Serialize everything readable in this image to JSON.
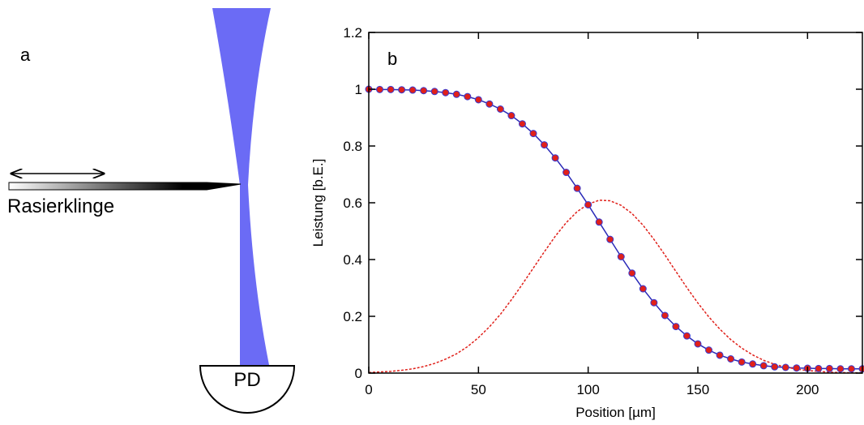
{
  "panel_a": {
    "label": "a",
    "blade_label": "Rasierklinge",
    "detector_label": "PD"
  },
  "chart_data": {
    "type": "line",
    "panel_label": "b",
    "x_label": "Position [µm]",
    "y_label": "Leistung [b.E.]",
    "x": [
      0,
      5,
      10,
      15,
      20,
      25,
      30,
      35,
      40,
      45,
      50,
      55,
      60,
      65,
      70,
      75,
      80,
      85,
      90,
      95,
      100,
      105,
      110,
      115,
      120,
      125,
      130,
      135,
      140,
      145,
      150,
      155,
      160,
      165,
      170,
      175,
      180,
      185,
      190,
      195,
      200,
      205,
      210,
      215,
      220,
      225
    ],
    "series": [
      {
        "style": "markers",
        "color": "#e0201a",
        "edge_color": "#3a3ad0",
        "values": [
          1.0,
          0.999,
          0.999,
          0.998,
          0.997,
          0.995,
          0.992,
          0.988,
          0.982,
          0.974,
          0.963,
          0.948,
          0.93,
          0.907,
          0.878,
          0.844,
          0.804,
          0.758,
          0.707,
          0.651,
          0.593,
          0.532,
          0.471,
          0.41,
          0.352,
          0.297,
          0.248,
          0.203,
          0.164,
          0.131,
          0.103,
          0.081,
          0.063,
          0.05,
          0.039,
          0.032,
          0.026,
          0.022,
          0.02,
          0.018,
          0.017,
          0.016,
          0.016,
          0.015,
          0.015,
          0.015
        ]
      },
      {
        "style": "solid",
        "color": "#2a2ab8",
        "values": [
          1.0,
          0.999,
          0.999,
          0.998,
          0.997,
          0.995,
          0.992,
          0.988,
          0.982,
          0.974,
          0.963,
          0.948,
          0.93,
          0.907,
          0.878,
          0.844,
          0.804,
          0.758,
          0.707,
          0.651,
          0.593,
          0.532,
          0.471,
          0.41,
          0.352,
          0.297,
          0.248,
          0.203,
          0.164,
          0.131,
          0.103,
          0.081,
          0.063,
          0.05,
          0.039,
          0.032,
          0.026,
          0.022,
          0.02,
          0.018,
          0.017,
          0.016,
          0.016,
          0.015,
          0.015,
          0.015
        ]
      },
      {
        "style": "dashed",
        "color": "#e0201a",
        "values": [
          0.002,
          0.004,
          0.006,
          0.01,
          0.015,
          0.023,
          0.034,
          0.049,
          0.068,
          0.093,
          0.125,
          0.163,
          0.207,
          0.258,
          0.313,
          0.37,
          0.427,
          0.482,
          0.53,
          0.569,
          0.595,
          0.609,
          0.607,
          0.591,
          0.562,
          0.521,
          0.471,
          0.416,
          0.358,
          0.301,
          0.247,
          0.198,
          0.155,
          0.118,
          0.088,
          0.064,
          0.045,
          0.031,
          0.021,
          0.014,
          0.009,
          0.006,
          0.003,
          0.002,
          0.001,
          0.001
        ]
      }
    ],
    "xlim": [
      0,
      225
    ],
    "xticks": [
      0,
      50,
      100,
      150,
      200
    ],
    "ylim": [
      0,
      1.2
    ],
    "yticks": [
      0,
      0.2,
      0.4,
      0.6,
      0.8,
      1,
      1.2
    ]
  }
}
